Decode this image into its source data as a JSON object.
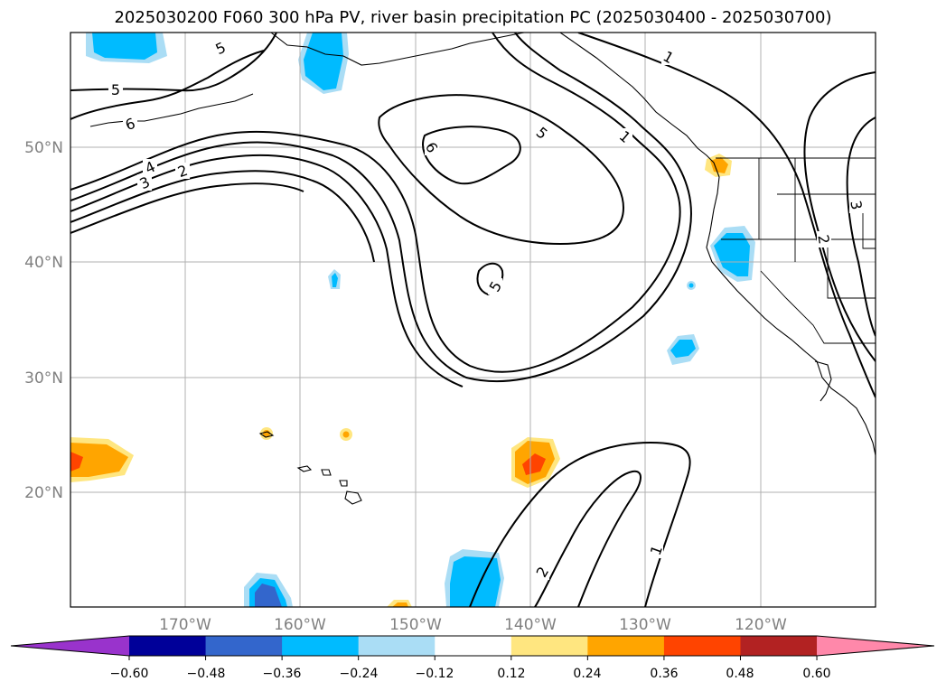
{
  "title": "2025030200 F060 300 hPa PV, river basin precipitation PC (2025030400 - 2025030700)",
  "lat_labels": [
    "50°N",
    "40°N",
    "30°N",
    "20°N"
  ],
  "lon_labels": [
    "170°W",
    "160°W",
    "150°W",
    "140°W",
    "130°W",
    "120°W"
  ],
  "colorbar": {
    "ticks": [
      "−0.60",
      "−0.48",
      "−0.36",
      "−0.24",
      "−0.12",
      "0.12",
      "0.24",
      "0.36",
      "0.48",
      "0.60"
    ],
    "colors": [
      "#9933cc",
      "#000099",
      "#3366cc",
      "#00bbff",
      "#aaddf5",
      "#ffffff",
      "#ffe680",
      "#ffa500",
      "#ff4400",
      "#b22222",
      "#ff88aa"
    ]
  },
  "pv_contour_labels": [
    "5",
    "5",
    "6",
    "4",
    "3",
    "2",
    "6",
    "5",
    "1",
    "5",
    "1",
    "3",
    "2",
    "2",
    "1"
  ]
}
